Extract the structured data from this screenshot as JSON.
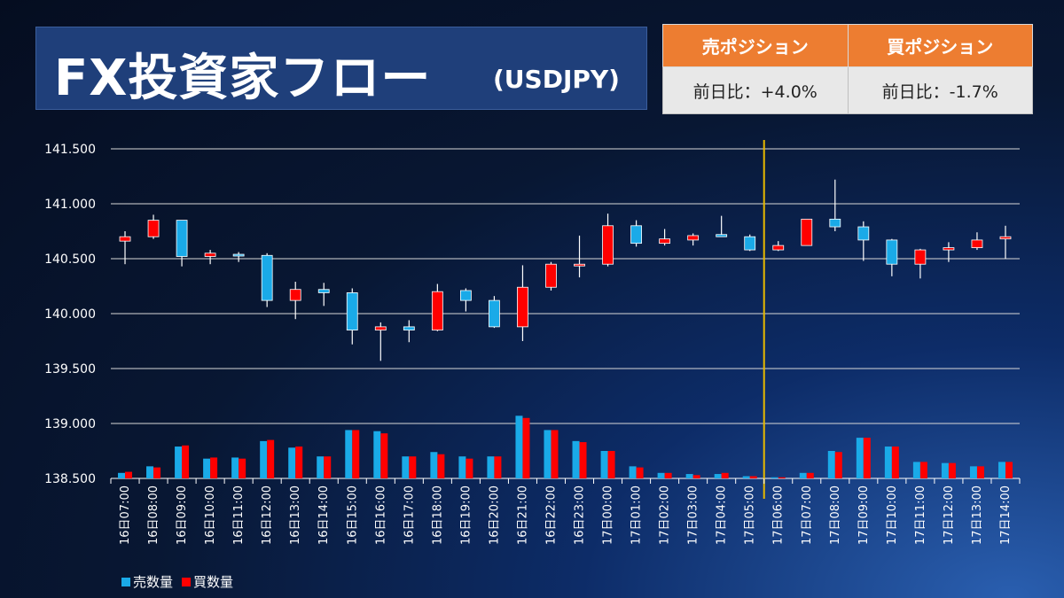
{
  "header": {
    "title": "FX投資家フロー",
    "pair": "(USDJPY)"
  },
  "positions": {
    "sell_label": "売ポジション",
    "buy_label": "買ポジション",
    "sell_change": "前日比：+4.0%",
    "buy_change": "前日比：-1.7%"
  },
  "colors": {
    "sell": "#1aaae8",
    "buy": "#ff0000",
    "header_orange": "#ed7d31",
    "marker_line": "#e6b800"
  },
  "chart_data": {
    "type": "candlestick",
    "y_ticks": [
      "141.500",
      "141.000",
      "140.500",
      "140.000",
      "139.500",
      "139.000",
      "138.500"
    ],
    "ylim": [
      138.5,
      141.5
    ],
    "grid": true,
    "legend_position": "bottom-left",
    "legend": [
      "売数量",
      "買数量"
    ],
    "vertical_marker_after": "17日05:00",
    "categories": [
      "16日07:00",
      "16日08:00",
      "16日09:00",
      "16日10:00",
      "16日11:00",
      "16日12:00",
      "16日13:00",
      "16日14:00",
      "16日15:00",
      "16日16:00",
      "16日17:00",
      "16日18:00",
      "16日19:00",
      "16日20:00",
      "16日21:00",
      "16日22:00",
      "16日23:00",
      "17日00:00",
      "17日01:00",
      "17日02:00",
      "17日03:00",
      "17日04:00",
      "17日05:00",
      "17日06:00",
      "17日07:00",
      "17日08:00",
      "17日09:00",
      "17日10:00",
      "17日11:00",
      "17日12:00",
      "17日13:00",
      "17日14:00"
    ],
    "ohlc": [
      {
        "o": 140.66,
        "h": 140.75,
        "l": 140.45,
        "c": 140.7
      },
      {
        "o": 140.7,
        "h": 140.9,
        "l": 140.68,
        "c": 140.85
      },
      {
        "o": 140.85,
        "h": 140.85,
        "l": 140.43,
        "c": 140.52
      },
      {
        "o": 140.52,
        "h": 140.58,
        "l": 140.45,
        "c": 140.55
      },
      {
        "o": 140.54,
        "h": 140.56,
        "l": 140.47,
        "c": 140.53
      },
      {
        "o": 140.53,
        "h": 140.55,
        "l": 140.06,
        "c": 140.12
      },
      {
        "o": 140.12,
        "h": 140.29,
        "l": 139.95,
        "c": 140.22
      },
      {
        "o": 140.22,
        "h": 140.28,
        "l": 140.07,
        "c": 140.19
      },
      {
        "o": 140.19,
        "h": 140.23,
        "l": 139.72,
        "c": 139.85
      },
      {
        "o": 139.85,
        "h": 139.92,
        "l": 139.57,
        "c": 139.88
      },
      {
        "o": 139.88,
        "h": 139.94,
        "l": 139.74,
        "c": 139.85
      },
      {
        "o": 139.85,
        "h": 140.27,
        "l": 139.84,
        "c": 140.2
      },
      {
        "o": 140.21,
        "h": 140.23,
        "l": 140.02,
        "c": 140.12
      },
      {
        "o": 140.12,
        "h": 140.16,
        "l": 139.87,
        "c": 139.88
      },
      {
        "o": 139.88,
        "h": 140.44,
        "l": 139.75,
        "c": 140.24
      },
      {
        "o": 140.24,
        "h": 140.47,
        "l": 140.21,
        "c": 140.45
      },
      {
        "o": 140.45,
        "h": 140.71,
        "l": 140.33,
        "c": 140.45
      },
      {
        "o": 140.45,
        "h": 140.91,
        "l": 140.43,
        "c": 140.8
      },
      {
        "o": 140.8,
        "h": 140.85,
        "l": 140.61,
        "c": 140.64
      },
      {
        "o": 140.64,
        "h": 140.77,
        "l": 140.62,
        "c": 140.68
      },
      {
        "o": 140.67,
        "h": 140.73,
        "l": 140.62,
        "c": 140.71
      },
      {
        "o": 140.72,
        "h": 140.89,
        "l": 140.7,
        "c": 140.7
      },
      {
        "o": 140.7,
        "h": 140.72,
        "l": 140.57,
        "c": 140.58
      },
      {
        "o": 140.58,
        "h": 140.66,
        "l": 140.57,
        "c": 140.62
      },
      {
        "o": 140.62,
        "h": 140.86,
        "l": 140.62,
        "c": 140.86
      },
      {
        "o": 140.86,
        "h": 141.22,
        "l": 140.75,
        "c": 140.79
      },
      {
        "o": 140.79,
        "h": 140.84,
        "l": 140.48,
        "c": 140.67
      },
      {
        "o": 140.67,
        "h": 140.68,
        "l": 140.34,
        "c": 140.45
      },
      {
        "o": 140.45,
        "h": 140.59,
        "l": 140.32,
        "c": 140.58
      },
      {
        "o": 140.58,
        "h": 140.65,
        "l": 140.47,
        "c": 140.6
      },
      {
        "o": 140.6,
        "h": 140.74,
        "l": 140.58,
        "c": 140.67
      },
      {
        "o": 140.68,
        "h": 140.8,
        "l": 140.5,
        "c": 140.7
      }
    ],
    "series": [
      {
        "name": "売数量",
        "values": [
          138.55,
          138.61,
          138.79,
          138.68,
          138.69,
          138.84,
          138.78,
          138.7,
          138.94,
          138.93,
          138.7,
          138.74,
          138.7,
          138.7,
          139.07,
          138.94,
          138.84,
          138.75,
          138.61,
          138.55,
          138.54,
          138.54,
          138.52,
          138.51,
          138.55,
          138.75,
          138.87,
          138.79,
          138.65,
          138.64,
          138.61,
          138.65
        ]
      },
      {
        "name": "買数量",
        "values": [
          138.56,
          138.6,
          138.8,
          138.69,
          138.68,
          138.85,
          138.79,
          138.7,
          138.94,
          138.91,
          138.7,
          138.72,
          138.68,
          138.7,
          139.05,
          138.94,
          138.83,
          138.75,
          138.6,
          138.55,
          138.53,
          138.55,
          138.52,
          138.51,
          138.55,
          138.74,
          138.87,
          138.79,
          138.65,
          138.64,
          138.61,
          138.65
        ]
      }
    ]
  }
}
